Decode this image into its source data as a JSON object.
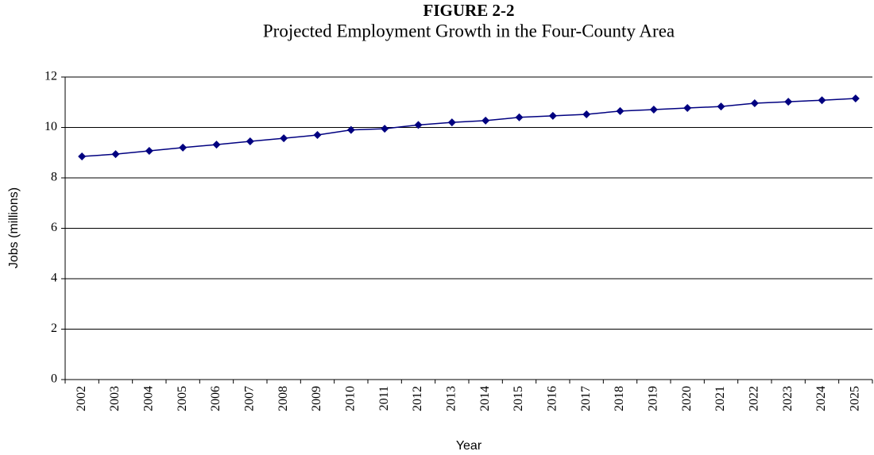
{
  "chart_data": {
    "type": "line",
    "title": "FIGURE 2-2",
    "subtitle": "Projected Employment Growth in the Four-County Area",
    "x_label": "Year",
    "y_label": "Jobs (millions)",
    "categories": [
      "2002",
      "2003",
      "2004",
      "2005",
      "2006",
      "2007",
      "2008",
      "2009",
      "2010",
      "2011",
      "2012",
      "2013",
      "2014",
      "2015",
      "2016",
      "2017",
      "2018",
      "2019",
      "2020",
      "2021",
      "2022",
      "2023",
      "2024",
      "2025"
    ],
    "values": [
      8.85,
      8.94,
      9.07,
      9.2,
      9.32,
      9.45,
      9.57,
      9.7,
      9.9,
      9.95,
      10.1,
      10.2,
      10.27,
      10.4,
      10.46,
      10.52,
      10.65,
      10.71,
      10.77,
      10.83,
      10.96,
      11.02,
      11.08,
      11.15
    ],
    "color": "#000080",
    "ylim": [
      0,
      12
    ],
    "yticks": [
      0,
      2,
      4,
      6,
      8,
      10,
      12
    ],
    "grid": true
  }
}
